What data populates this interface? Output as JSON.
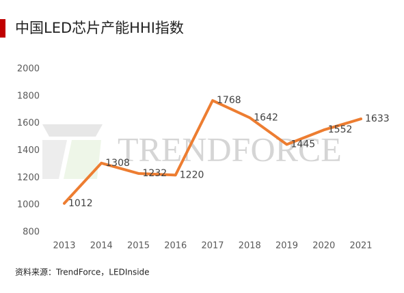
{
  "chart_data": {
    "type": "line",
    "title": "中国LED芯片产能HHI指数",
    "source": "资料来源：TrendForce，LEDInside",
    "watermark": "TRENDFORCE",
    "categories": [
      "2013",
      "2014",
      "2015",
      "2016",
      "2017",
      "2018",
      "2019",
      "2020",
      "2021"
    ],
    "series": [
      {
        "name": "HHI",
        "color": "#ed7d31",
        "values": [
          1012,
          1308,
          1232,
          1220,
          1768,
          1642,
          1445,
          1552,
          1633
        ]
      }
    ],
    "ylim": [
      800,
      2000
    ],
    "yticks": [
      800,
      1000,
      1200,
      1400,
      1600,
      1800,
      2000
    ],
    "grid": false
  }
}
